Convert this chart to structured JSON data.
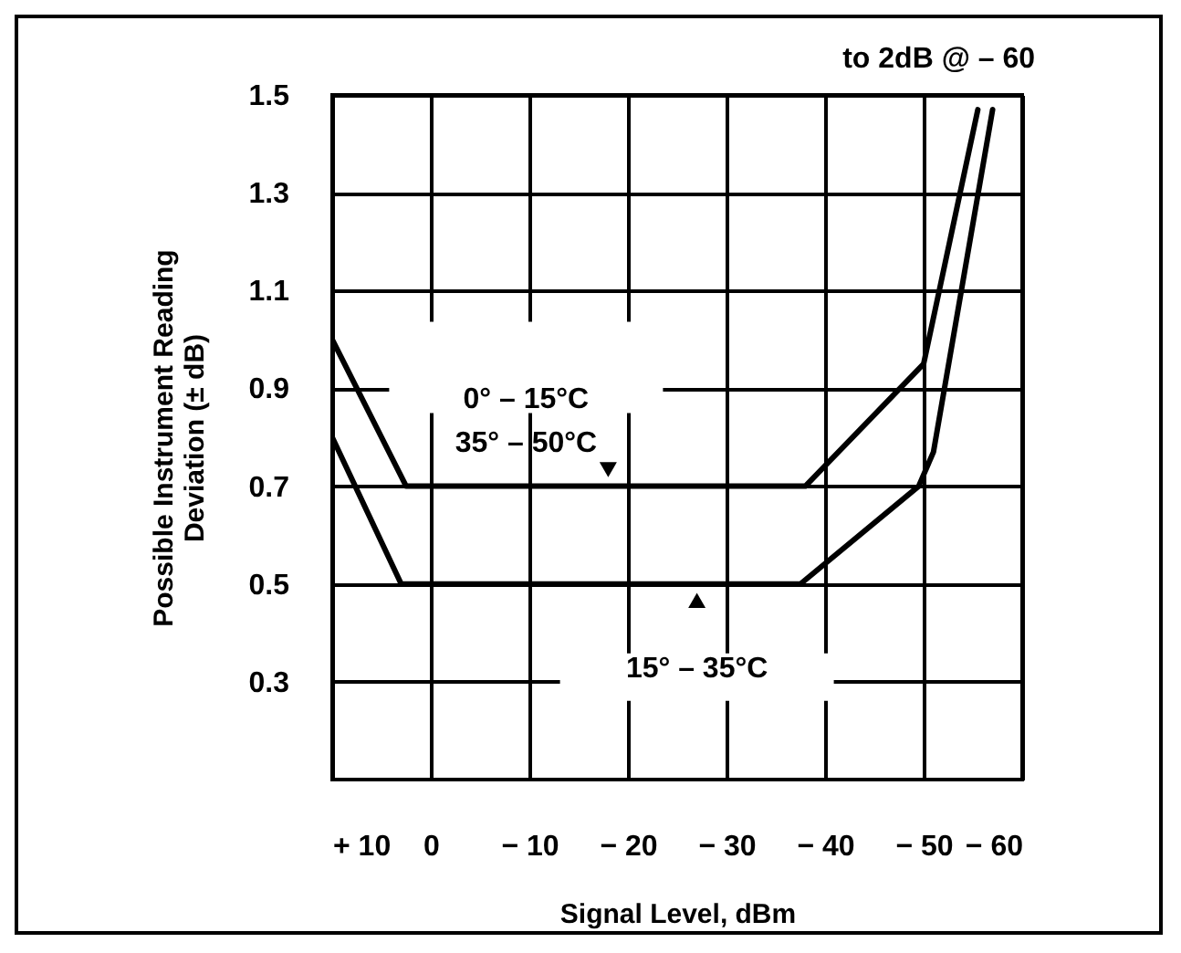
{
  "chart_data": {
    "type": "line",
    "xlabel": "Signal Level, dBm",
    "ylabel": "Possible Instrument Reading\nDeviation (± dB)",
    "xlim": [
      10,
      -60
    ],
    "xticks": [
      {
        "value": 10,
        "label": "+ 10"
      },
      0,
      {
        "value": -10,
        "label": "− 10"
      },
      {
        "value": -20,
        "label": "− 20"
      },
      {
        "value": -30,
        "label": "− 30"
      },
      {
        "value": -40,
        "label": "− 40"
      },
      {
        "value": -50,
        "label": "− 50"
      },
      {
        "value": -60,
        "label": "− 60"
      }
    ],
    "ylim": [
      0.1,
      1.5
    ],
    "yticks": [
      0.3,
      0.5,
      0.7,
      0.9,
      1.1,
      1.3,
      1.5
    ],
    "grid": true,
    "line_style": "solid",
    "series": [
      {
        "color": "#000000",
        "x": [
          10,
          2.5,
          -38,
          -50,
          -55.5
        ],
        "values": [
          1.0,
          0.7,
          0.7,
          0.95,
          1.47
        ]
      },
      {
        "color": "#000000",
        "x": [
          10,
          3,
          -37.5,
          -49.5,
          -51,
          -57
        ],
        "values": [
          0.8,
          0.5,
          0.5,
          0.7,
          0.77,
          1.47
        ]
      }
    ],
    "annotations": [
      {
        "text": "0° – 15°C\n35° – 50°C",
        "x": -18,
        "y": 0.7
      },
      {
        "text": "15° – 35°C",
        "x": -27,
        "y": 0.5
      },
      "to 2dB @ – 60"
    ]
  }
}
